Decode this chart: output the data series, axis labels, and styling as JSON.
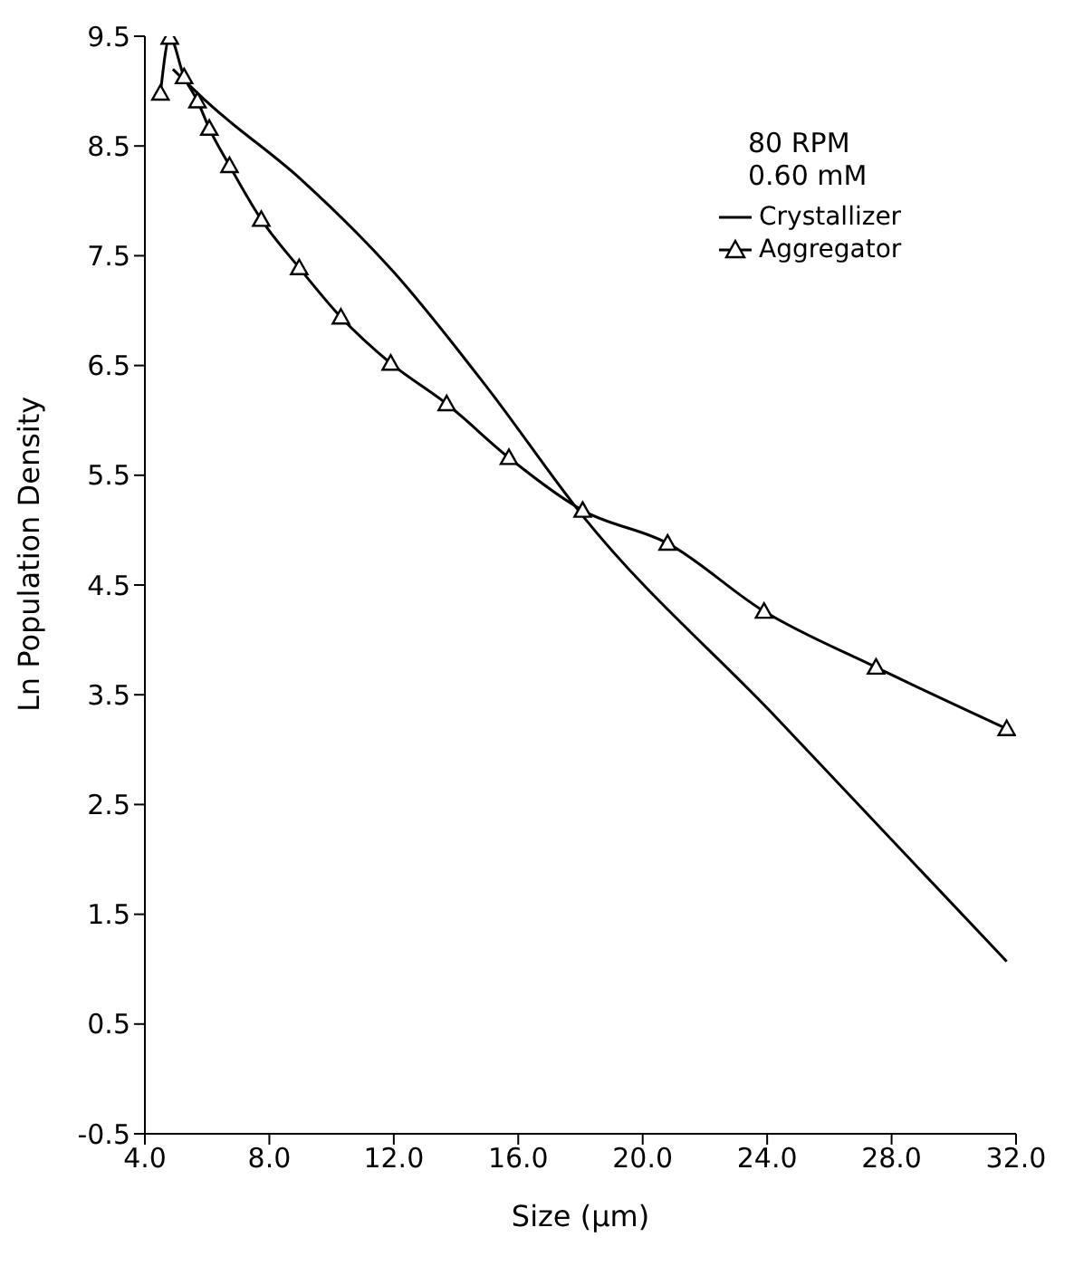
{
  "chart_data": {
    "type": "line",
    "xlabel": "Size (µm)",
    "ylabel": "Ln Population Density",
    "xlim": [
      4.0,
      32.0
    ],
    "xticks": [
      {
        "value": 4,
        "label": "4.0"
      },
      {
        "value": 8,
        "label": "8.0"
      },
      {
        "value": 12,
        "label": "12.0"
      },
      {
        "value": 16,
        "label": "16.0"
      },
      {
        "value": 20,
        "label": "20.0"
      },
      {
        "value": 24,
        "label": "24.0"
      },
      {
        "value": 28,
        "label": "28.0"
      },
      {
        "value": 32,
        "label": "32.0"
      }
    ],
    "ylim": [
      -0.5,
      9.5
    ],
    "yticks": [
      -0.5,
      0.5,
      1.5,
      2.5,
      3.5,
      4.5,
      5.5,
      6.5,
      7.5,
      8.5,
      9.5
    ],
    "annotations": [
      "80 RPM",
      "0.60 mM"
    ],
    "legend": "top right",
    "grid": false,
    "series": [
      {
        "name": "Crystallizer",
        "color": "#000000",
        "marker": "none",
        "x": [
          4.9,
          6.0,
          9.0,
          12.0,
          15.0,
          18.1,
          24.2,
          31.7
        ],
        "values": [
          9.2,
          8.9,
          8.2,
          7.35,
          6.3,
          5.12,
          3.32,
          1.07
        ]
      },
      {
        "name": "Aggregator",
        "color": "#000000",
        "marker": "triangle",
        "x": [
          4.5,
          4.8,
          5.26,
          5.69,
          6.07,
          6.72,
          7.74,
          8.96,
          10.3,
          11.9,
          13.7,
          15.7,
          18.07,
          20.8,
          23.9,
          27.5,
          31.7
        ],
        "values": [
          8.98,
          9.49,
          9.13,
          8.91,
          8.66,
          8.32,
          7.83,
          7.39,
          6.94,
          6.52,
          6.15,
          5.66,
          5.18,
          4.88,
          4.26,
          3.75,
          3.19
        ]
      }
    ]
  }
}
